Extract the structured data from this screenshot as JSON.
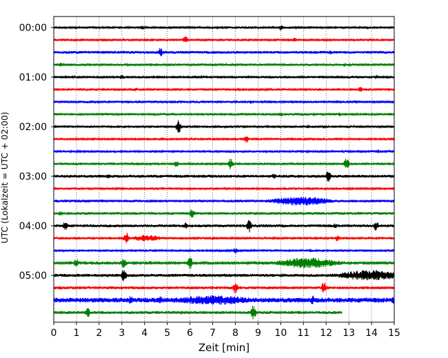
{
  "chart_data": {
    "type": "line",
    "title": "",
    "xlabel": "Zeit  [min]",
    "ylabel": "UTC (Lokalzeit = UTC + 02:00)",
    "xlim": [
      0,
      15
    ],
    "x_ticks": [
      "0",
      "1",
      "2",
      "3",
      "4",
      "5",
      "6",
      "7",
      "8",
      "9",
      "10",
      "11",
      "12",
      "13",
      "14",
      "15"
    ],
    "y_tick_labels": [
      "00:00",
      "01:00",
      "02:00",
      "03:00",
      "04:00",
      "05:00"
    ],
    "rows_per_hour": 4,
    "row_minutes": 15,
    "grid": "vertical dotted at each minute",
    "line_colors": [
      "#000000",
      "#ff0000",
      "#0000ff",
      "#008000"
    ],
    "rows": [
      {
        "time": "00:00",
        "color": "#000000",
        "end_min": 15,
        "noise": 1.0,
        "events": [
          {
            "t": 10.0,
            "amp": 4
          },
          {
            "t": 3.9,
            "amp": 3
          }
        ]
      },
      {
        "time": "00:15",
        "color": "#ff0000",
        "end_min": 15,
        "noise": 1.0,
        "events": [
          {
            "t": 5.8,
            "amp": 6
          },
          {
            "t": 10.6,
            "amp": 3
          }
        ]
      },
      {
        "time": "00:30",
        "color": "#0000ff",
        "end_min": 15,
        "noise": 1.2,
        "events": [
          {
            "t": 4.7,
            "amp": 7
          },
          {
            "t": 12.2,
            "amp": 3
          }
        ]
      },
      {
        "time": "00:45",
        "color": "#008000",
        "end_min": 15,
        "noise": 1.1,
        "events": [
          {
            "t": 12.8,
            "amp": 3
          },
          {
            "t": 0.3,
            "amp": 3
          }
        ]
      },
      {
        "time": "01:00",
        "color": "#000000",
        "end_min": 15,
        "noise": 1.0,
        "events": [
          {
            "t": 3.0,
            "amp": 4
          },
          {
            "t": 6.3,
            "amp": 3
          },
          {
            "t": 14.2,
            "amp": 3
          }
        ]
      },
      {
        "time": "01:15",
        "color": "#ff0000",
        "end_min": 15,
        "noise": 1.0,
        "events": [
          {
            "t": 3.6,
            "amp": 3
          },
          {
            "t": 13.5,
            "amp": 4
          }
        ]
      },
      {
        "time": "01:30",
        "color": "#0000ff",
        "end_min": 15,
        "noise": 1.0,
        "events": [
          {
            "t": 2.2,
            "amp": 2
          },
          {
            "t": 8.7,
            "amp": 3
          }
        ]
      },
      {
        "time": "01:45",
        "color": "#008000",
        "end_min": 15,
        "noise": 1.1,
        "events": [
          {
            "t": 10.0,
            "amp": 3
          },
          {
            "t": 12.6,
            "amp": 3
          }
        ]
      },
      {
        "time": "02:00",
        "color": "#000000",
        "end_min": 15,
        "noise": 1.0,
        "events": [
          {
            "t": 5.5,
            "amp": 10
          },
          {
            "t": 11.2,
            "amp": 3
          }
        ]
      },
      {
        "time": "02:15",
        "color": "#ff0000",
        "end_min": 15,
        "noise": 1.0,
        "events": [
          {
            "t": 8.5,
            "amp": 6
          },
          {
            "t": 2.1,
            "amp": 2
          }
        ]
      },
      {
        "time": "02:30",
        "color": "#0000ff",
        "end_min": 15,
        "noise": 1.0,
        "events": [
          {
            "t": 14.3,
            "amp": 3
          }
        ]
      },
      {
        "time": "02:45",
        "color": "#008000",
        "end_min": 15,
        "noise": 1.0,
        "events": [
          {
            "t": 5.4,
            "amp": 5
          },
          {
            "t": 7.8,
            "amp": 9
          },
          {
            "t": 12.9,
            "amp": 10
          }
        ]
      },
      {
        "time": "03:00",
        "color": "#000000",
        "end_min": 15,
        "noise": 1.3,
        "events": [
          {
            "t": 2.4,
            "amp": 4
          },
          {
            "t": 9.7,
            "amp": 4
          },
          {
            "t": 12.1,
            "amp": 9
          }
        ]
      },
      {
        "time": "03:15",
        "color": "#ff0000",
        "end_min": 15,
        "noise": 1.0,
        "events": [
          {
            "t": 7.2,
            "amp": 2
          }
        ]
      },
      {
        "time": "03:30",
        "color": "#0000ff",
        "end_min": 15,
        "noise": 1.2,
        "events": [
          {
            "t": 10.9,
            "amp": 7,
            "burst": 1.0
          }
        ]
      },
      {
        "time": "03:45",
        "color": "#008000",
        "end_min": 15,
        "noise": 1.2,
        "events": [
          {
            "t": 0.3,
            "amp": 4
          },
          {
            "t": 6.1,
            "amp": 8
          }
        ]
      },
      {
        "time": "04:00",
        "color": "#000000",
        "end_min": 15,
        "noise": 1.3,
        "events": [
          {
            "t": 0.5,
            "amp": 8
          },
          {
            "t": 5.8,
            "amp": 5
          },
          {
            "t": 8.6,
            "amp": 10
          },
          {
            "t": 12.4,
            "amp": 4
          },
          {
            "t": 14.2,
            "amp": 8
          }
        ]
      },
      {
        "time": "04:15",
        "color": "#ff0000",
        "end_min": 15,
        "noise": 1.0,
        "events": [
          {
            "t": 3.2,
            "amp": 11
          },
          {
            "t": 4.1,
            "amp": 5,
            "burst": 0.5
          },
          {
            "t": 12.5,
            "amp": 5
          }
        ]
      },
      {
        "time": "04:30",
        "color": "#0000ff",
        "end_min": 15,
        "noise": 1.0,
        "events": [
          {
            "t": 8.0,
            "amp": 5
          },
          {
            "t": 11.3,
            "amp": 3
          }
        ]
      },
      {
        "time": "04:45",
        "color": "#008000",
        "end_min": 15,
        "noise": 1.5,
        "events": [
          {
            "t": 1.0,
            "amp": 7
          },
          {
            "t": 3.1,
            "amp": 9
          },
          {
            "t": 6.0,
            "amp": 10
          },
          {
            "t": 10.6,
            "amp": 8
          },
          {
            "t": 11.2,
            "amp": 8,
            "burst": 1.0
          }
        ]
      },
      {
        "time": "05:00",
        "color": "#000000",
        "end_min": 15,
        "noise": 1.4,
        "events": [
          {
            "t": 3.1,
            "amp": 10
          },
          {
            "t": 13.9,
            "amp": 8,
            "burst": 1.0
          },
          {
            "t": 10.1,
            "amp": 3
          }
        ]
      },
      {
        "time": "05:15",
        "color": "#ff0000",
        "end_min": 15,
        "noise": 1.3,
        "events": [
          {
            "t": 8.0,
            "amp": 9
          },
          {
            "t": 11.9,
            "amp": 9
          },
          {
            "t": 0.3,
            "amp": 3
          }
        ]
      },
      {
        "time": "05:30",
        "color": "#0000ff",
        "end_min": 15,
        "noise": 2.2,
        "events": [
          {
            "t": 3.4,
            "amp": 8
          },
          {
            "t": 4.7,
            "amp": 6
          },
          {
            "t": 7.0,
            "amp": 7,
            "burst": 1.5
          },
          {
            "t": 11.4,
            "amp": 7
          },
          {
            "t": 15.0,
            "amp": 7
          }
        ]
      },
      {
        "time": "05:45",
        "color": "#008000",
        "end_min": 12.7,
        "noise": 1.3,
        "events": [
          {
            "t": 1.5,
            "amp": 8
          },
          {
            "t": 8.8,
            "amp": 12
          },
          {
            "t": 5.6,
            "amp": 3
          }
        ]
      }
    ]
  }
}
